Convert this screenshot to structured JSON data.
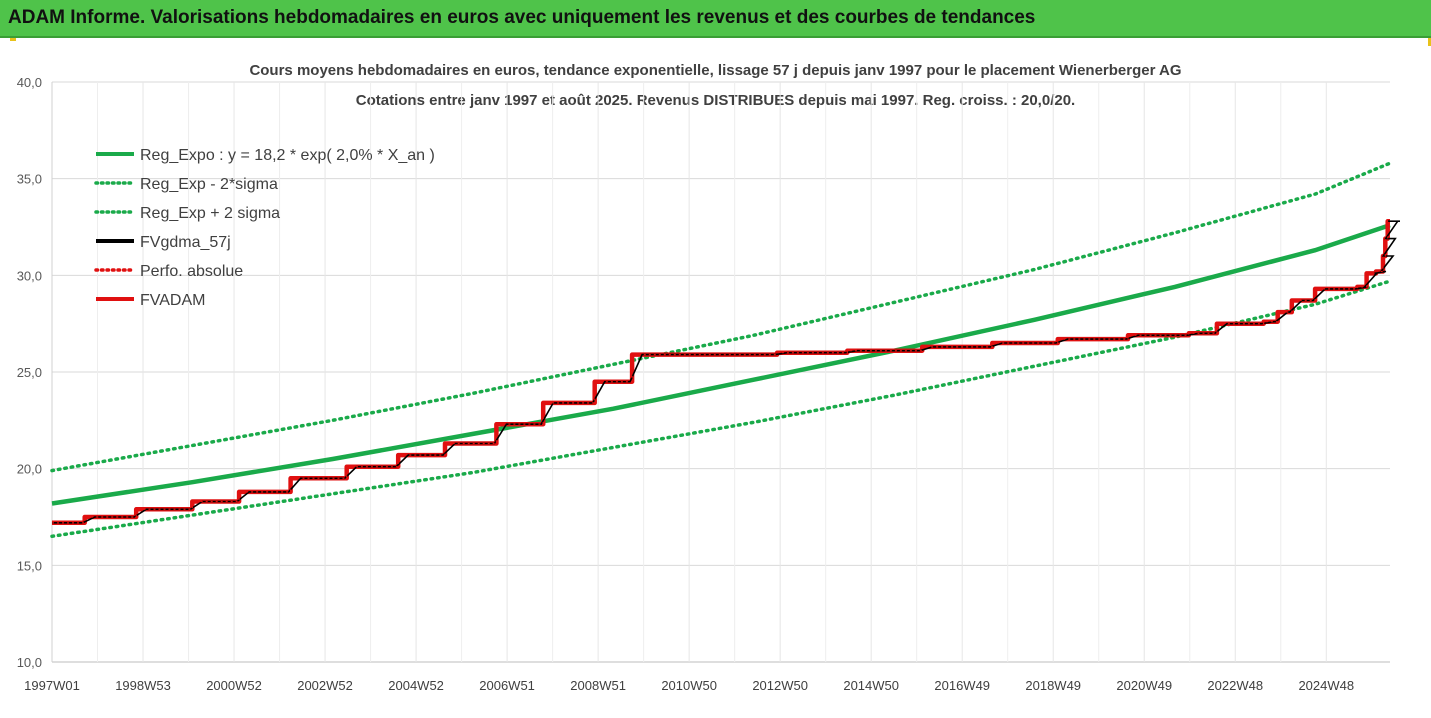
{
  "header": {
    "title": "ADAM Informe. Valorisations hebdomadaires en euros avec uniquement les revenus et des courbes de tendances"
  },
  "colors": {
    "banner": "#4fc34a",
    "trend": "#1aaa4a",
    "band": "#1aaa4a",
    "smooth": "#000000",
    "perfo": "#e01010",
    "fvadam": "#e01010"
  },
  "chart_data": {
    "type": "line",
    "title": "Cours moyens hebdomadaires en euros, tendance exponentielle, lissage 57 j depuis janv 1997 pour le placement Wienerberger AG",
    "subtitle": "Cotations entre janv 1997 et août 2025. Revenus DISTRIBUES depuis mai 1997. Reg. croiss. : 20,0/20.",
    "xlabel": "",
    "ylabel": "",
    "ylim": [
      10,
      40
    ],
    "x_range_years": [
      1997.0,
      2025.6
    ],
    "y_ticks": [
      "10,0",
      "15,0",
      "20,0",
      "25,0",
      "30,0",
      "35,0",
      "40,0"
    ],
    "x_ticks": [
      "1997W01",
      "1998W53",
      "2000W52",
      "2002W52",
      "2004W52",
      "2006W51",
      "2008W51",
      "2010W50",
      "2012W50",
      "2014W50",
      "2016W49",
      "2018W49",
      "2020W49",
      "2022W48",
      "2024W48"
    ],
    "grid": true,
    "legend_position": "top-left",
    "legend": [
      {
        "name": "Reg_Expo : y = 18,2 * exp( 2,0% *  X_an )",
        "style": "solid",
        "color": "#1aaa4a"
      },
      {
        "name": "Reg_Exp - 2*sigma",
        "style": "dotted",
        "color": "#1aaa4a"
      },
      {
        "name": "Reg_Exp + 2 sigma",
        "style": "dotted",
        "color": "#1aaa4a"
      },
      {
        "name": "FVgdma_57j",
        "style": "solid",
        "color": "#000000"
      },
      {
        "name": "Perfo. absolue",
        "style": "dotted",
        "color": "#e01010"
      },
      {
        "name": "FVADAM",
        "style": "solid",
        "color": "#e01010"
      }
    ],
    "series": [
      {
        "name": "Reg_Expo : y = 18,2 * exp( 2,0% *  X_an )",
        "x": [
          1997.0,
          2000.0,
          2003.0,
          2006.0,
          2009.0,
          2012.0,
          2015.0,
          2018.0,
          2021.0,
          2024.0,
          2025.6
        ],
        "values": [
          18.2,
          19.3,
          20.5,
          21.8,
          23.1,
          24.6,
          26.1,
          27.7,
          29.4,
          31.3,
          32.6
        ]
      },
      {
        "name": "Reg_Exp - 2*sigma",
        "x": [
          1997.0,
          2000.0,
          2003.0,
          2006.0,
          2009.0,
          2012.0,
          2015.0,
          2018.0,
          2021.0,
          2024.0,
          2025.6
        ],
        "values": [
          16.5,
          17.6,
          18.7,
          19.8,
          21.1,
          22.4,
          23.8,
          25.3,
          26.8,
          28.5,
          29.7
        ]
      },
      {
        "name": "Reg_Exp + 2 sigma",
        "x": [
          1997.0,
          2000.0,
          2003.0,
          2006.0,
          2009.0,
          2012.0,
          2015.0,
          2018.0,
          2021.0,
          2024.0,
          2025.6
        ],
        "values": [
          19.9,
          21.2,
          22.5,
          23.9,
          25.4,
          26.9,
          28.6,
          30.3,
          32.2,
          34.2,
          35.8
        ]
      },
      {
        "name": "FVADAM",
        "steps": [
          [
            1997.0,
            17.2
          ],
          [
            1997.7,
            17.5
          ],
          [
            1998.8,
            17.9
          ],
          [
            2000.0,
            18.3
          ],
          [
            2001.0,
            18.8
          ],
          [
            2002.1,
            19.5
          ],
          [
            2003.3,
            20.1
          ],
          [
            2004.4,
            20.7
          ],
          [
            2005.4,
            21.3
          ],
          [
            2006.5,
            22.3
          ],
          [
            2007.5,
            23.4
          ],
          [
            2008.6,
            24.5
          ],
          [
            2009.4,
            25.9
          ],
          [
            2011.0,
            25.9
          ],
          [
            2012.5,
            26.0
          ],
          [
            2014.0,
            26.1
          ],
          [
            2015.6,
            26.3
          ],
          [
            2017.1,
            26.5
          ],
          [
            2018.5,
            26.7
          ],
          [
            2020.0,
            26.9
          ],
          [
            2021.3,
            27.0
          ],
          [
            2021.9,
            27.5
          ],
          [
            2022.9,
            27.6
          ],
          [
            2023.2,
            28.1
          ],
          [
            2023.5,
            28.7
          ],
          [
            2024.0,
            29.3
          ],
          [
            2024.9,
            29.4
          ],
          [
            2025.1,
            30.1
          ],
          [
            2025.3,
            30.2
          ],
          [
            2025.45,
            31.0
          ],
          [
            2025.5,
            31.9
          ],
          [
            2025.55,
            32.8
          ],
          [
            2025.6,
            32.8
          ]
        ]
      },
      {
        "name": "FVgdma_57j",
        "follows": "FVADAM"
      },
      {
        "name": "Perfo. absolue",
        "follows": "FVADAM"
      }
    ]
  }
}
